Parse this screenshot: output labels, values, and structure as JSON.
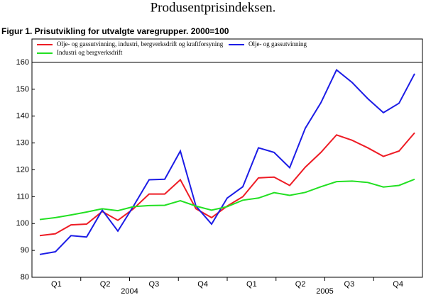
{
  "header": {
    "title": "Produsentprisindeksen."
  },
  "chart_data": {
    "type": "line",
    "title": "Figur 1. Prisutvikling for utvalgte varegrupper. 2000=100",
    "categories": [
      null,
      null,
      null,
      null,
      null,
      null,
      null,
      null,
      null,
      null,
      null,
      null,
      null,
      null,
      null,
      null,
      null,
      null,
      null,
      null,
      null,
      null,
      null,
      null,
      null
    ],
    "quarters": [
      "Q1",
      "Q2",
      "Q3",
      "Q4",
      "Q1",
      "Q2",
      "Q3",
      "Q4"
    ],
    "years": [
      "2004",
      "2005"
    ],
    "ylim": [
      80,
      160
    ],
    "yticks": [
      80,
      90,
      100,
      110,
      120,
      130,
      140,
      150,
      160
    ],
    "legend": "top",
    "series": [
      {
        "name": "Olje- og gassutvinning, industri, bergverksdrift og kraftforsyning",
        "color": "#ee1c25",
        "values": [
          95.5,
          96.2,
          99.5,
          99.8,
          104.5,
          101.2,
          105.5,
          111,
          111,
          116.3,
          105.5,
          102.2,
          106.5,
          110,
          117,
          117.3,
          114.2,
          121,
          126.5,
          133,
          131,
          128.2,
          125,
          127,
          133.8
        ]
      },
      {
        "name": "Olje- og gassutvinning",
        "color": "#1c1ce6",
        "values": [
          88.5,
          89.5,
          95.5,
          95,
          105,
          97.2,
          106.5,
          116.3,
          116.5,
          127,
          106.5,
          99.8,
          109.5,
          113.7,
          128.2,
          126.5,
          120.8,
          135.5,
          145,
          157.2,
          152.5,
          146.5,
          141.3,
          144.8,
          155.8
        ]
      },
      {
        "name": "Industri og bergverksdrift",
        "color": "#22e022",
        "values": [
          101.5,
          102.2,
          103.2,
          104.3,
          105.5,
          104.8,
          106.3,
          106.7,
          106.8,
          108.5,
          106.5,
          105,
          106.3,
          108.7,
          109.5,
          111.5,
          110.5,
          111.6,
          113.7,
          115.6,
          115.8,
          115.3,
          113.6,
          114.2,
          116.5
        ]
      }
    ]
  }
}
